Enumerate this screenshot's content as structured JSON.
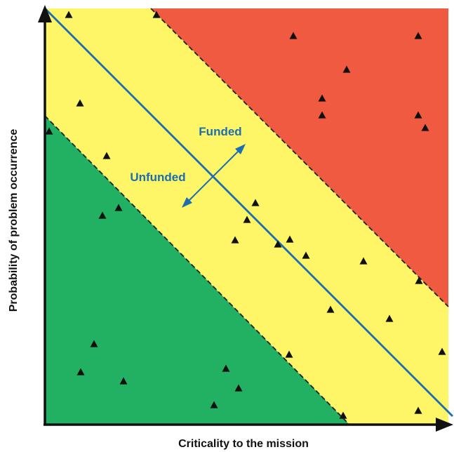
{
  "x_axis_label": "Criticality to the mission",
  "y_axis_label": "Probability of problem occurrence",
  "zones": {
    "funded_label": "Funded",
    "unfunded_label": "Unfunded"
  },
  "colors": {
    "high_zone": "#f05a40",
    "middle_zone": "#fef666",
    "low_zone": "#22b063",
    "divider_line": "#1b6eb2",
    "zone_border": "#222222",
    "axis": "#111111",
    "marker": "#111111",
    "label_text": "#1b6eb2"
  },
  "icons": {
    "marker": "triangle-marker-icon",
    "arrow": "double-headed-arrow-icon"
  }
}
